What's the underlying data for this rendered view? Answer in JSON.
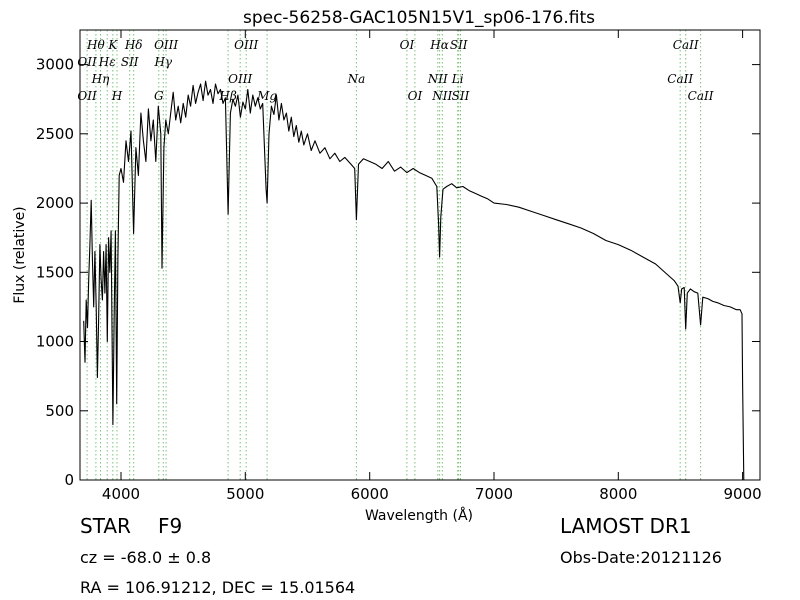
{
  "chart_data": {
    "type": "line",
    "title": "spec-56258-GAC105N15V1_sp06-176.fits",
    "xlabel": "Wavelength (Å)",
    "ylabel": "Flux (relative)",
    "xlim": [
      3670,
      9140
    ],
    "ylim": [
      0,
      3250
    ],
    "xticks": [
      4000,
      5000,
      6000,
      7000,
      8000,
      9000
    ],
    "yticks": [
      0,
      500,
      1000,
      1500,
      2000,
      2500,
      3000
    ],
    "grid": false,
    "spectrum": {
      "color": "#000000",
      "points": [
        [
          3700,
          1150
        ],
        [
          3710,
          850
        ],
        [
          3720,
          1300
        ],
        [
          3730,
          1100
        ],
        [
          3740,
          1450
        ],
        [
          3750,
          1700
        ],
        [
          3760,
          2020
        ],
        [
          3770,
          1600
        ],
        [
          3780,
          1250
        ],
        [
          3790,
          1650
        ],
        [
          3800,
          1250
        ],
        [
          3810,
          740
        ],
        [
          3820,
          1150
        ],
        [
          3830,
          1700
        ],
        [
          3840,
          1450
        ],
        [
          3850,
          1300
        ],
        [
          3860,
          1650
        ],
        [
          3870,
          1350
        ],
        [
          3880,
          1700
        ],
        [
          3890,
          1000
        ],
        [
          3900,
          1750
        ],
        [
          3910,
          1500
        ],
        [
          3920,
          1800
        ],
        [
          3935,
          400
        ],
        [
          3945,
          1200
        ],
        [
          3955,
          1800
        ],
        [
          3965,
          550
        ],
        [
          3975,
          1600
        ],
        [
          3985,
          2200
        ],
        [
          4000,
          2250
        ],
        [
          4020,
          2150
        ],
        [
          4040,
          2450
        ],
        [
          4060,
          2300
        ],
        [
          4080,
          2520
        ],
        [
          4101,
          1780
        ],
        [
          4120,
          2400
        ],
        [
          4140,
          2200
        ],
        [
          4160,
          2650
        ],
        [
          4180,
          2450
        ],
        [
          4200,
          2300
        ],
        [
          4220,
          2680
        ],
        [
          4240,
          2450
        ],
        [
          4260,
          2600
        ],
        [
          4280,
          2300
        ],
        [
          4300,
          2700
        ],
        [
          4320,
          2500
        ],
        [
          4330,
          1530
        ],
        [
          4345,
          2400
        ],
        [
          4360,
          2600
        ],
        [
          4380,
          2500
        ],
        [
          4400,
          2650
        ],
        [
          4420,
          2800
        ],
        [
          4440,
          2600
        ],
        [
          4460,
          2700
        ],
        [
          4480,
          2580
        ],
        [
          4500,
          2720
        ],
        [
          4520,
          2620
        ],
        [
          4540,
          2780
        ],
        [
          4560,
          2700
        ],
        [
          4580,
          2850
        ],
        [
          4600,
          2720
        ],
        [
          4620,
          2800
        ],
        [
          4640,
          2860
        ],
        [
          4660,
          2740
        ],
        [
          4680,
          2880
        ],
        [
          4700,
          2780
        ],
        [
          4720,
          2820
        ],
        [
          4740,
          2720
        ],
        [
          4760,
          2860
        ],
        [
          4780,
          2790
        ],
        [
          4800,
          2820
        ],
        [
          4820,
          2720
        ],
        [
          4840,
          2760
        ],
        [
          4861,
          1920
        ],
        [
          4880,
          2650
        ],
        [
          4900,
          2750
        ],
        [
          4920,
          2700
        ],
        [
          4940,
          2780
        ],
        [
          4960,
          2620
        ],
        [
          4980,
          2730
        ],
        [
          5000,
          2680
        ],
        [
          5020,
          2820
        ],
        [
          5040,
          2650
        ],
        [
          5060,
          2780
        ],
        [
          5080,
          2700
        ],
        [
          5100,
          2760
        ],
        [
          5120,
          2680
        ],
        [
          5140,
          2720
        ],
        [
          5167,
          2100
        ],
        [
          5175,
          2000
        ],
        [
          5190,
          2500
        ],
        [
          5210,
          2700
        ],
        [
          5230,
          2640
        ],
        [
          5250,
          2780
        ],
        [
          5270,
          2600
        ],
        [
          5290,
          2720
        ],
        [
          5310,
          2600
        ],
        [
          5330,
          2650
        ],
        [
          5350,
          2520
        ],
        [
          5370,
          2620
        ],
        [
          5390,
          2480
        ],
        [
          5410,
          2560
        ],
        [
          5430,
          2440
        ],
        [
          5450,
          2520
        ],
        [
          5470,
          2420
        ],
        [
          5500,
          2500
        ],
        [
          5530,
          2380
        ],
        [
          5560,
          2450
        ],
        [
          5600,
          2360
        ],
        [
          5640,
          2400
        ],
        [
          5680,
          2320
        ],
        [
          5720,
          2360
        ],
        [
          5760,
          2300
        ],
        [
          5800,
          2330
        ],
        [
          5850,
          2280
        ],
        [
          5880,
          2250
        ],
        [
          5893,
          1880
        ],
        [
          5910,
          2280
        ],
        [
          5950,
          2320
        ],
        [
          6000,
          2300
        ],
        [
          6050,
          2280
        ],
        [
          6100,
          2250
        ],
        [
          6150,
          2300
        ],
        [
          6200,
          2230
        ],
        [
          6250,
          2260
        ],
        [
          6300,
          2220
        ],
        [
          6350,
          2250
        ],
        [
          6400,
          2220
        ],
        [
          6450,
          2200
        ],
        [
          6500,
          2180
        ],
        [
          6540,
          2120
        ],
        [
          6555,
          1850
        ],
        [
          6563,
          1610
        ],
        [
          6572,
          1900
        ],
        [
          6590,
          2100
        ],
        [
          6620,
          2120
        ],
        [
          6660,
          2140
        ],
        [
          6700,
          2110
        ],
        [
          6750,
          2120
        ],
        [
          6800,
          2090
        ],
        [
          6850,
          2070
        ],
        [
          6900,
          2050
        ],
        [
          6950,
          2030
        ],
        [
          7000,
          2000
        ],
        [
          7100,
          1990
        ],
        [
          7200,
          1970
        ],
        [
          7300,
          1940
        ],
        [
          7400,
          1910
        ],
        [
          7500,
          1880
        ],
        [
          7600,
          1850
        ],
        [
          7700,
          1820
        ],
        [
          7800,
          1780
        ],
        [
          7900,
          1730
        ],
        [
          8000,
          1700
        ],
        [
          8100,
          1660
        ],
        [
          8200,
          1610
        ],
        [
          8300,
          1560
        ],
        [
          8400,
          1480
        ],
        [
          8450,
          1440
        ],
        [
          8480,
          1400
        ],
        [
          8498,
          1280
        ],
        [
          8510,
          1380
        ],
        [
          8530,
          1390
        ],
        [
          8542,
          1090
        ],
        [
          8555,
          1350
        ],
        [
          8580,
          1380
        ],
        [
          8610,
          1360
        ],
        [
          8640,
          1350
        ],
        [
          8662,
          1120
        ],
        [
          8680,
          1320
        ],
        [
          8720,
          1310
        ],
        [
          8760,
          1290
        ],
        [
          8800,
          1280
        ],
        [
          8850,
          1260
        ],
        [
          8900,
          1250
        ],
        [
          8950,
          1230
        ],
        [
          8980,
          1230
        ],
        [
          8995,
          1200
        ],
        [
          9000,
          700
        ],
        [
          9010,
          0
        ]
      ]
    },
    "lines_color": "#7bc17b",
    "lines": [
      {
        "label": "Hθ",
        "wavelength": 3798,
        "row": 1
      },
      {
        "label": "OII",
        "wavelength": 3727,
        "row": 2
      },
      {
        "label": "Hη",
        "wavelength": 3835,
        "row": 3
      },
      {
        "label": "OII",
        "wavelength": 3727,
        "row": 4
      },
      {
        "label": "K",
        "wavelength": 3934,
        "row": 1
      },
      {
        "label": "Hε",
        "wavelength": 3889,
        "row": 2
      },
      {
        "label": "SII",
        "wavelength": 4070,
        "row": 2
      },
      {
        "label": "H",
        "wavelength": 3968,
        "row": 4
      },
      {
        "label": "Hδ",
        "wavelength": 4102,
        "row": 1
      },
      {
        "label": "OIII",
        "wavelength": 4363,
        "row": 1
      },
      {
        "label": "Hγ",
        "wavelength": 4340,
        "row": 2
      },
      {
        "label": "G",
        "wavelength": 4304,
        "row": 4
      },
      {
        "label": "OIII",
        "wavelength": 5007,
        "row": 1
      },
      {
        "label": "OIII",
        "wavelength": 4959,
        "row": 3
      },
      {
        "label": "Hβ",
        "wavelength": 4861,
        "row": 4
      },
      {
        "label": "Mg",
        "wavelength": 5175,
        "row": 4
      },
      {
        "label": "Na",
        "wavelength": 5893,
        "row": 3
      },
      {
        "label": "OI",
        "wavelength": 6300,
        "row": 1
      },
      {
        "label": "OI",
        "wavelength": 6364,
        "row": 4
      },
      {
        "label": "Hα",
        "wavelength": 6563,
        "row": 1
      },
      {
        "label": "SII",
        "wavelength": 6716,
        "row": 1
      },
      {
        "label": "NII",
        "wavelength": 6548,
        "row": 3
      },
      {
        "label": "Li",
        "wavelength": 6708,
        "row": 3
      },
      {
        "label": "NII",
        "wavelength": 6584,
        "row": 4
      },
      {
        "label": "SII",
        "wavelength": 6731,
        "row": 4
      },
      {
        "label": "CaII",
        "wavelength": 8542,
        "row": 1
      },
      {
        "label": "CaII",
        "wavelength": 8498,
        "row": 3
      },
      {
        "label": "CaII",
        "wavelength": 8662,
        "row": 4
      }
    ]
  },
  "info": {
    "class_label": "STAR",
    "subclass": "F9",
    "survey": "LAMOST DR1",
    "cz": "cz = -68.0 ± 0.8",
    "obs_date": "Obs-Date:20121126",
    "coords": "RA = 106.91212, DEC = 15.01564"
  }
}
